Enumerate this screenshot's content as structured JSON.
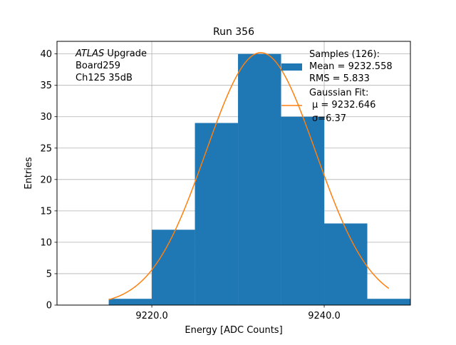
{
  "chart_data": {
    "type": "bar",
    "title": "Run 356",
    "xlabel": "Energy [ADC Counts]",
    "ylabel": "Entries",
    "xlim": [
      9209.0,
      9250.0
    ],
    "ylim": [
      0,
      42
    ],
    "x_ticks": [
      9220.0,
      9240.0
    ],
    "x_tick_labels": [
      "9220.0",
      "9240.0"
    ],
    "y_ticks": [
      0,
      5,
      10,
      15,
      20,
      25,
      30,
      35,
      40
    ],
    "grid": true,
    "histogram": {
      "name": "Samples (126):",
      "color": "#1f77b4",
      "bins": [
        {
          "x0": 9215.0,
          "x1": 9220.0,
          "count": 1
        },
        {
          "x0": 9220.0,
          "x1": 9225.0,
          "count": 12
        },
        {
          "x0": 9225.0,
          "x1": 9230.0,
          "count": 29
        },
        {
          "x0": 9230.0,
          "x1": 9235.0,
          "count": 40
        },
        {
          "x0": 9235.0,
          "x1": 9240.0,
          "count": 30
        },
        {
          "x0": 9240.0,
          "x1": 9245.0,
          "count": 13
        },
        {
          "x0": 9245.0,
          "x1": 9250.0,
          "count": 1
        }
      ]
    },
    "fit": {
      "name": "Gaussian Fit:",
      "color": "#ff7f0e",
      "mu": 9232.646,
      "sigma": 6.37,
      "amplitude": 40.2,
      "x_start": 9215.0,
      "x_end": 9247.5
    },
    "legend": {
      "position": "top-right",
      "samples_title": "Samples (126):",
      "samples_mean": " Mean = 9232.558",
      "samples_rms": " RMS = 5.833",
      "fit_title": "Gaussian Fit:",
      "fit_mu": "μ = 9232.646",
      "fit_sigma": "σ=6.37"
    },
    "annotation": {
      "position": "top-left",
      "atlas": "ATLAS",
      "upgrade": " Upgrade",
      "board": " Board259",
      "channel": " Ch125 35dB"
    }
  }
}
